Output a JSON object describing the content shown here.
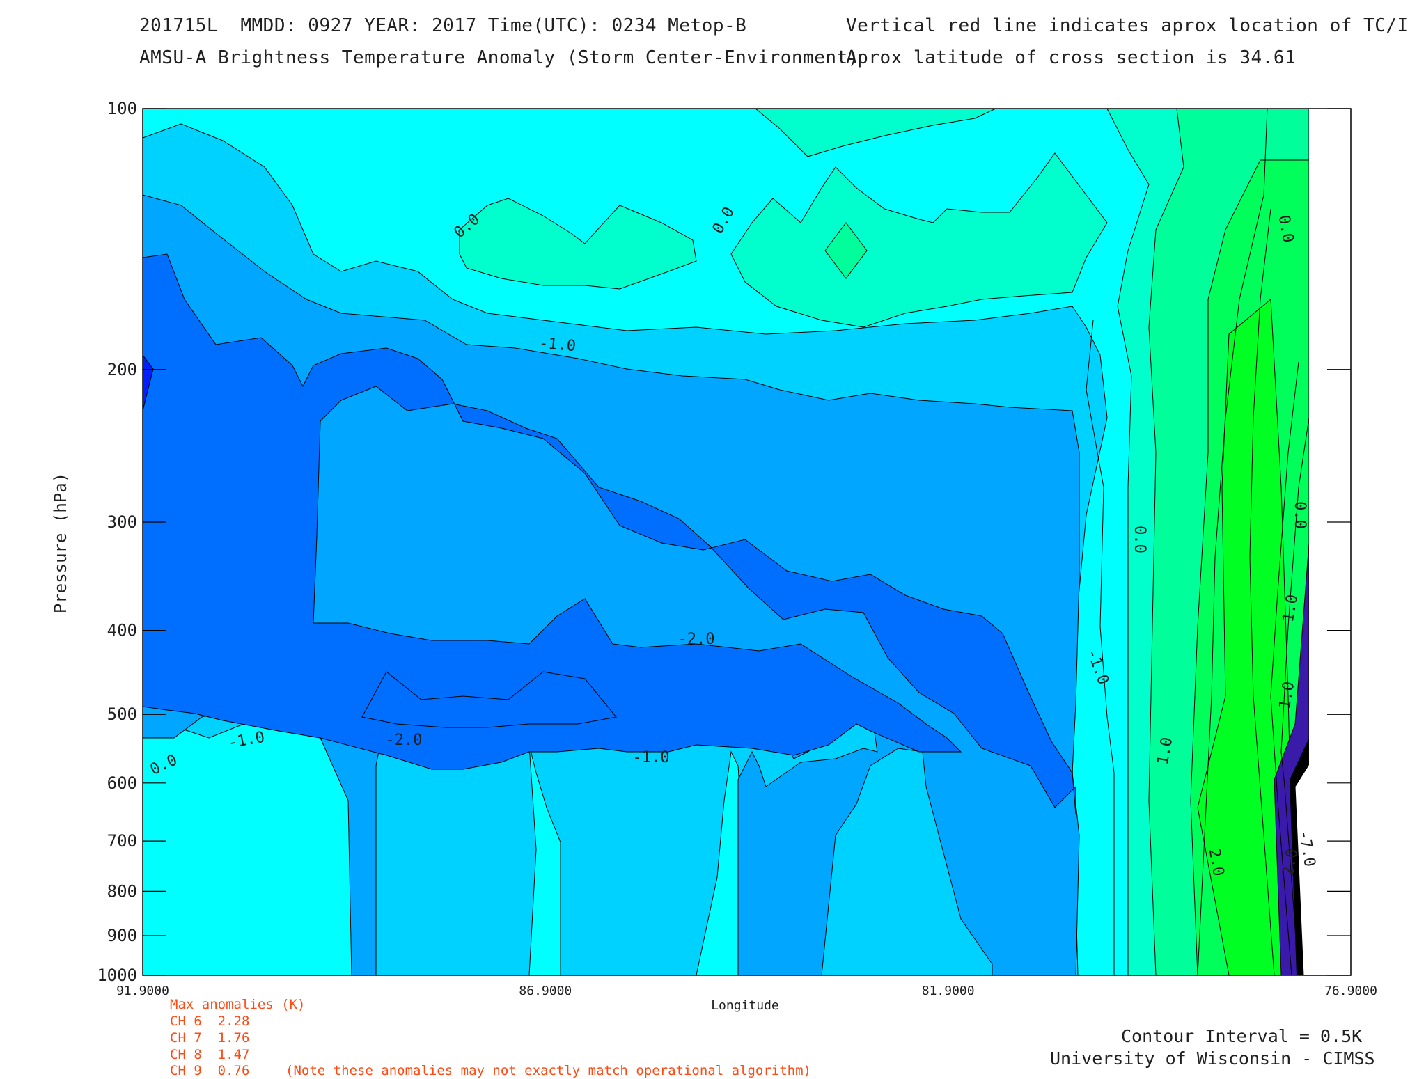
{
  "header": {
    "line1_left": "201715L  MMDD: 0927 YEAR: 2017 Time(UTC): 0234 Metop-B",
    "line2_left": "AMSU-A Brightness Temperature Anomaly (Storm Center-Environment)",
    "line1_right": "Vertical red line indicates aprox location of TC/Invest",
    "line2_right": "Aprox latitude of cross section is 34.61"
  },
  "footer": {
    "contour_interval": "Contour Interval = 0.5K",
    "credit": "University of Wisconsin - CIMSS"
  },
  "max_anomalies": {
    "title": "Max anomalies (K)",
    "rows": [
      "CH 6  2.28",
      "CH 7  1.76",
      "CH 8  1.47",
      "CH 9  0.76"
    ],
    "note": "(Note these anomalies may not exactly match operational algorithm)"
  },
  "chart_data": {
    "type": "contour",
    "title": "AMSU-A Brightness Temperature Anomaly (Storm Center-Environment)",
    "xlabel": "Longitude",
    "ylabel": "Pressure (hPa)",
    "x_ticks": [
      "91.9000",
      "86.9000",
      "81.9000",
      "76.9000"
    ],
    "y_ticks": [
      "100",
      "200",
      "300",
      "400",
      "500",
      "600",
      "700",
      "800",
      "900",
      "1000"
    ],
    "xlim": [
      91.9,
      76.9
    ],
    "ylim": [
      1000,
      100
    ],
    "y_scale": "log",
    "contour_interval_K": 0.5,
    "contour_labels": [
      "0.0",
      "0.0",
      "0.0",
      "0.0",
      "0.0",
      "0.0",
      "-1.0",
      "-1.0",
      "-1.0",
      "-1.0",
      "-2.0",
      "-2.0",
      "1.0",
      "1.0",
      "1.0",
      "2.0",
      "2.0",
      "-7.0"
    ],
    "colors": {
      "cyan": "#00ffff",
      "light_blue": "#00d2ff",
      "mid_blue": "#00a6ff",
      "deep_blue": "#006eff",
      "navy": "#0020ff",
      "aqua_green": "#00ffcc",
      "green_1": "#00ff9a",
      "green_2": "#00ff5a",
      "green_3": "#00ff22"
    }
  }
}
